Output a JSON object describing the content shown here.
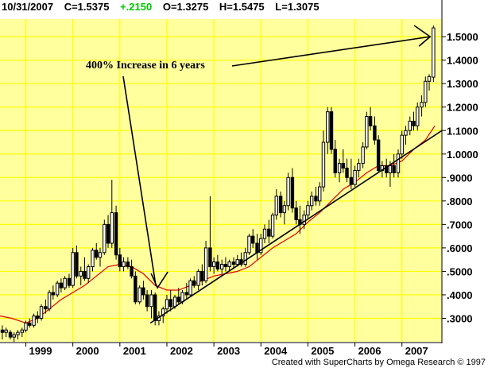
{
  "header": {
    "date": "10/31/2007",
    "close": "C=1.5375",
    "change": "+.2150",
    "open": "O=1.3275",
    "high": "H=1.5475",
    "low": "L=1.3075"
  },
  "footer": "Created with SuperCharts by Omega Research © 1997",
  "colors": {
    "background": "#ffffff",
    "plot_background": "#ffff9e",
    "grid": "#ffff00",
    "candles": "#000000",
    "moving_average": "#e00000",
    "trendline": "#000000",
    "change_text": "#00c800"
  },
  "chart_data": {
    "type": "candlestick",
    "title": "",
    "ylim": [
      0.2,
      1.575
    ],
    "y_ticks": [
      0.3,
      0.4,
      0.5,
      0.6,
      0.7,
      0.8,
      0.9,
      1.0,
      1.1,
      1.2,
      1.3,
      1.4,
      1.5
    ],
    "y_tick_labels": [
      ".3000",
      ".4000",
      ".5000",
      ".6000",
      ".7000",
      ".8000",
      ".9000",
      "1.0000",
      "1.1000",
      "1.2000",
      "1.3000",
      "1.4000",
      "1.5000"
    ],
    "x_ticks": [
      1999,
      2000,
      2001,
      2002,
      2003,
      2004,
      2005,
      2006,
      2007
    ],
    "x_tick_labels": [
      "1999",
      "2000",
      "2001",
      "2002",
      "2003",
      "2004",
      "2005",
      "2006",
      "2007"
    ],
    "xlim": [
      1998.45,
      2007.85
    ],
    "grid": true,
    "axis_side": "right",
    "annotation": {
      "text": "400% Increase in 6 years",
      "low_point": {
        "x": 2001.8,
        "y": 0.43
      },
      "high_point": {
        "x": 2007.6,
        "y": 1.5
      }
    },
    "trendline": [
      {
        "x": 2001.65,
        "y": 0.28
      },
      {
        "x": 2007.85,
        "y": 1.1
      }
    ],
    "moving_average": [
      [
        1998.45,
        0.31
      ],
      [
        1998.7,
        0.3
      ],
      [
        1999.0,
        0.28
      ],
      [
        1999.25,
        0.3
      ],
      [
        1999.5,
        0.34
      ],
      [
        1999.75,
        0.38
      ],
      [
        2000.0,
        0.41
      ],
      [
        2000.25,
        0.44
      ],
      [
        2000.5,
        0.48
      ],
      [
        2000.75,
        0.52
      ],
      [
        2001.0,
        0.53
      ],
      [
        2001.25,
        0.52
      ],
      [
        2001.5,
        0.49
      ],
      [
        2001.75,
        0.44
      ],
      [
        2002.0,
        0.42
      ],
      [
        2002.25,
        0.42
      ],
      [
        2002.5,
        0.44
      ],
      [
        2002.75,
        0.46
      ],
      [
        2003.0,
        0.48
      ],
      [
        2003.25,
        0.49
      ],
      [
        2003.5,
        0.5
      ],
      [
        2003.75,
        0.52
      ],
      [
        2004.0,
        0.56
      ],
      [
        2004.25,
        0.6
      ],
      [
        2004.5,
        0.63
      ],
      [
        2004.75,
        0.66
      ],
      [
        2005.0,
        0.71
      ],
      [
        2005.25,
        0.75
      ],
      [
        2005.5,
        0.8
      ],
      [
        2005.75,
        0.85
      ],
      [
        2006.0,
        0.88
      ],
      [
        2006.25,
        0.92
      ],
      [
        2006.5,
        0.95
      ],
      [
        2006.75,
        0.95
      ],
      [
        2007.0,
        0.97
      ],
      [
        2007.25,
        1.02
      ],
      [
        2007.5,
        1.06
      ],
      [
        2007.7,
        1.12
      ]
    ],
    "candles": [
      [
        1998.5,
        0.25,
        0.27,
        0.21,
        0.24
      ],
      [
        1998.58,
        0.24,
        0.26,
        0.22,
        0.25
      ],
      [
        1998.67,
        0.24,
        0.25,
        0.21,
        0.22
      ],
      [
        1998.75,
        0.22,
        0.24,
        0.2,
        0.23
      ],
      [
        1998.83,
        0.23,
        0.25,
        0.21,
        0.24
      ],
      [
        1998.92,
        0.24,
        0.26,
        0.22,
        0.25
      ],
      [
        1999.0,
        0.25,
        0.29,
        0.24,
        0.28
      ],
      [
        1999.08,
        0.28,
        0.3,
        0.26,
        0.27
      ],
      [
        1999.17,
        0.27,
        0.32,
        0.26,
        0.31
      ],
      [
        1999.25,
        0.31,
        0.33,
        0.28,
        0.3
      ],
      [
        1999.33,
        0.3,
        0.36,
        0.29,
        0.35
      ],
      [
        1999.42,
        0.35,
        0.38,
        0.32,
        0.34
      ],
      [
        1999.5,
        0.34,
        0.42,
        0.33,
        0.41
      ],
      [
        1999.58,
        0.41,
        0.44,
        0.38,
        0.4
      ],
      [
        1999.67,
        0.4,
        0.46,
        0.39,
        0.45
      ],
      [
        1999.75,
        0.45,
        0.47,
        0.41,
        0.43
      ],
      [
        1999.83,
        0.43,
        0.48,
        0.42,
        0.47
      ],
      [
        1999.92,
        0.47,
        0.49,
        0.43,
        0.44
      ],
      [
        2000.0,
        0.44,
        0.6,
        0.43,
        0.58
      ],
      [
        2000.08,
        0.58,
        0.61,
        0.47,
        0.48
      ],
      [
        2000.17,
        0.48,
        0.52,
        0.44,
        0.5
      ],
      [
        2000.25,
        0.5,
        0.56,
        0.46,
        0.47
      ],
      [
        2000.33,
        0.47,
        0.53,
        0.45,
        0.52
      ],
      [
        2000.42,
        0.52,
        0.6,
        0.5,
        0.59
      ],
      [
        2000.5,
        0.59,
        0.62,
        0.55,
        0.56
      ],
      [
        2000.58,
        0.56,
        0.6,
        0.52,
        0.58
      ],
      [
        2000.67,
        0.58,
        0.72,
        0.57,
        0.7
      ],
      [
        2000.75,
        0.7,
        0.74,
        0.6,
        0.62
      ],
      [
        2000.83,
        0.62,
        0.89,
        0.6,
        0.75
      ],
      [
        2000.92,
        0.75,
        0.78,
        0.55,
        0.57
      ],
      [
        2001.0,
        0.57,
        0.6,
        0.5,
        0.52
      ],
      [
        2001.08,
        0.52,
        0.56,
        0.5,
        0.54
      ],
      [
        2001.17,
        0.54,
        0.56,
        0.51,
        0.52
      ],
      [
        2001.25,
        0.52,
        0.55,
        0.47,
        0.48
      ],
      [
        2001.33,
        0.48,
        0.5,
        0.36,
        0.37
      ],
      [
        2001.42,
        0.37,
        0.44,
        0.36,
        0.43
      ],
      [
        2001.5,
        0.43,
        0.46,
        0.38,
        0.4
      ],
      [
        2001.58,
        0.4,
        0.42,
        0.33,
        0.35
      ],
      [
        2001.67,
        0.35,
        0.42,
        0.3,
        0.4
      ],
      [
        2001.75,
        0.4,
        0.41,
        0.27,
        0.29
      ],
      [
        2001.83,
        0.29,
        0.33,
        0.27,
        0.31
      ],
      [
        2001.92,
        0.31,
        0.35,
        0.28,
        0.34
      ],
      [
        2002.0,
        0.34,
        0.4,
        0.32,
        0.38
      ],
      [
        2002.08,
        0.38,
        0.42,
        0.33,
        0.35
      ],
      [
        2002.17,
        0.35,
        0.4,
        0.34,
        0.39
      ],
      [
        2002.25,
        0.39,
        0.43,
        0.36,
        0.37
      ],
      [
        2002.33,
        0.37,
        0.42,
        0.36,
        0.41
      ],
      [
        2002.42,
        0.41,
        0.45,
        0.38,
        0.4
      ],
      [
        2002.5,
        0.4,
        0.47,
        0.39,
        0.46
      ],
      [
        2002.58,
        0.46,
        0.48,
        0.43,
        0.44
      ],
      [
        2002.67,
        0.44,
        0.51,
        0.42,
        0.5
      ],
      [
        2002.75,
        0.5,
        0.53,
        0.44,
        0.46
      ],
      [
        2002.83,
        0.46,
        0.63,
        0.45,
        0.6
      ],
      [
        2002.92,
        0.6,
        0.82,
        0.5,
        0.52
      ],
      [
        2003.0,
        0.52,
        0.56,
        0.49,
        0.54
      ],
      [
        2003.08,
        0.54,
        0.57,
        0.5,
        0.51
      ],
      [
        2003.17,
        0.51,
        0.55,
        0.49,
        0.53
      ],
      [
        2003.25,
        0.53,
        0.56,
        0.5,
        0.52
      ],
      [
        2003.33,
        0.52,
        0.55,
        0.5,
        0.54
      ],
      [
        2003.42,
        0.54,
        0.56,
        0.51,
        0.53
      ],
      [
        2003.5,
        0.53,
        0.57,
        0.52,
        0.55
      ],
      [
        2003.58,
        0.55,
        0.58,
        0.52,
        0.53
      ],
      [
        2003.67,
        0.53,
        0.6,
        0.52,
        0.58
      ],
      [
        2003.75,
        0.58,
        0.66,
        0.57,
        0.65
      ],
      [
        2003.83,
        0.65,
        0.68,
        0.6,
        0.62
      ],
      [
        2003.92,
        0.62,
        0.66,
        0.55,
        0.58
      ],
      [
        2004.0,
        0.58,
        0.66,
        0.57,
        0.64
      ],
      [
        2004.08,
        0.64,
        0.7,
        0.62,
        0.68
      ],
      [
        2004.17,
        0.68,
        0.72,
        0.62,
        0.65
      ],
      [
        2004.25,
        0.65,
        0.75,
        0.64,
        0.74
      ],
      [
        2004.33,
        0.74,
        0.85,
        0.72,
        0.82
      ],
      [
        2004.42,
        0.82,
        0.84,
        0.73,
        0.75
      ],
      [
        2004.5,
        0.75,
        0.8,
        0.7,
        0.78
      ],
      [
        2004.58,
        0.78,
        0.92,
        0.76,
        0.9
      ],
      [
        2004.67,
        0.9,
        0.94,
        0.75,
        0.77
      ],
      [
        2004.75,
        0.77,
        0.8,
        0.7,
        0.72
      ],
      [
        2004.83,
        0.72,
        0.78,
        0.66,
        0.7
      ],
      [
        2004.92,
        0.7,
        0.76,
        0.68,
        0.74
      ],
      [
        2005.0,
        0.74,
        0.8,
        0.72,
        0.78
      ],
      [
        2005.08,
        0.78,
        0.84,
        0.76,
        0.82
      ],
      [
        2005.17,
        0.82,
        0.86,
        0.78,
        0.8
      ],
      [
        2005.25,
        0.8,
        0.88,
        0.78,
        0.86
      ],
      [
        2005.33,
        0.86,
        1.1,
        0.84,
        1.05
      ],
      [
        2005.42,
        1.05,
        1.2,
        1.0,
        1.18
      ],
      [
        2005.5,
        1.18,
        1.2,
        1.0,
        1.02
      ],
      [
        2005.58,
        1.02,
        1.06,
        0.9,
        0.92
      ],
      [
        2005.67,
        0.92,
        0.98,
        0.88,
        0.96
      ],
      [
        2005.75,
        0.96,
        1.02,
        0.92,
        0.94
      ],
      [
        2005.83,
        0.94,
        0.98,
        0.88,
        0.9
      ],
      [
        2005.92,
        0.9,
        0.98,
        0.85,
        0.87
      ],
      [
        2006.0,
        0.87,
        0.95,
        0.86,
        0.93
      ],
      [
        2006.08,
        0.93,
        0.98,
        0.9,
        0.96
      ],
      [
        2006.17,
        0.96,
        1.05,
        0.94,
        1.03
      ],
      [
        2006.25,
        1.03,
        1.18,
        1.02,
        1.16
      ],
      [
        2006.33,
        1.16,
        1.2,
        1.1,
        1.12
      ],
      [
        2006.42,
        1.12,
        1.16,
        1.04,
        1.06
      ],
      [
        2006.5,
        1.06,
        1.08,
        0.92,
        0.93
      ],
      [
        2006.58,
        0.93,
        0.97,
        0.9,
        0.95
      ],
      [
        2006.67,
        0.95,
        0.98,
        0.9,
        0.92
      ],
      [
        2006.75,
        0.92,
        0.97,
        0.86,
        0.95
      ],
      [
        2006.83,
        0.95,
        1.0,
        0.9,
        0.92
      ],
      [
        2006.92,
        0.92,
        1.02,
        0.9,
        1.0
      ],
      [
        2007.0,
        1.0,
        1.1,
        0.98,
        1.08
      ],
      [
        2007.08,
        1.08,
        1.12,
        1.04,
        1.1
      ],
      [
        2007.17,
        1.1,
        1.16,
        1.08,
        1.14
      ],
      [
        2007.25,
        1.14,
        1.18,
        1.1,
        1.12
      ],
      [
        2007.33,
        1.12,
        1.22,
        1.1,
        1.2
      ],
      [
        2007.42,
        1.2,
        1.25,
        1.16,
        1.22
      ],
      [
        2007.5,
        1.22,
        1.33,
        1.2,
        1.31
      ],
      [
        2007.58,
        1.31,
        1.34,
        1.27,
        1.33
      ],
      [
        2007.67,
        1.3275,
        1.5475,
        1.3075,
        1.5375
      ]
    ]
  }
}
